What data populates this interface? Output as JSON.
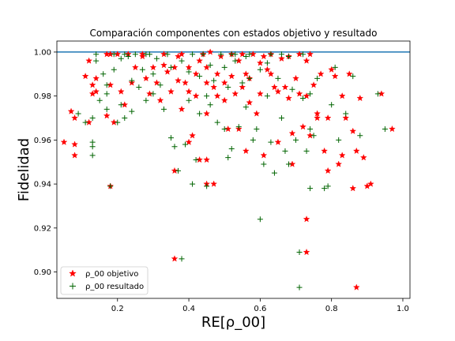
{
  "chart_data": {
    "type": "scatter",
    "title": "Comparación componentes con estados objetivo y resultado",
    "xlabel": "RE[ρ_00]",
    "ylabel": "Fidelidad",
    "xlim": [
      0.03,
      1.02
    ],
    "ylim": [
      0.888,
      1.005
    ],
    "x_ticks": [
      0.2,
      0.4,
      0.6,
      0.8,
      1.0
    ],
    "x_tick_labels": [
      "0.2",
      "0.4",
      "0.6",
      "0.8",
      "1.0"
    ],
    "y_ticks": [
      0.9,
      0.92,
      0.94,
      0.96,
      0.98,
      1.0
    ],
    "y_tick_labels": [
      "0.90",
      "0.92",
      "0.94",
      "0.96",
      "0.98",
      "1.00"
    ],
    "grid": false,
    "legend_position": "lower-left",
    "reference_line": {
      "y": 1.0,
      "color": "#1f77b4"
    },
    "series": [
      {
        "name": "ρ_00 objetivo",
        "marker": "star",
        "color": "#ff0000",
        "points": [
          [
            0.07,
            0.973
          ],
          [
            0.08,
            0.97
          ],
          [
            0.05,
            0.959
          ],
          [
            0.08,
            0.958
          ],
          [
            0.08,
            0.953
          ],
          [
            0.11,
            0.989
          ],
          [
            0.12,
            0.996
          ],
          [
            0.12,
            0.968
          ],
          [
            0.13,
            0.985
          ],
          [
            0.13,
            0.981
          ],
          [
            0.14,
            0.988
          ],
          [
            0.14,
            0.982
          ],
          [
            0.17,
            0.971
          ],
          [
            0.17,
            0.999
          ],
          [
            0.18,
            0.999
          ],
          [
            0.18,
            0.985
          ],
          [
            0.19,
            0.968
          ],
          [
            0.18,
            0.939
          ],
          [
            0.2,
            0.999
          ],
          [
            0.21,
            0.982
          ],
          [
            0.22,
            0.976
          ],
          [
            0.23,
            0.999
          ],
          [
            0.24,
            0.986
          ],
          [
            0.25,
            0.993
          ],
          [
            0.27,
            0.999
          ],
          [
            0.28,
            0.988
          ],
          [
            0.29,
            0.981
          ],
          [
            0.3,
            0.993
          ],
          [
            0.31,
            0.986
          ],
          [
            0.32,
            0.978
          ],
          [
            0.33,
            0.999
          ],
          [
            0.34,
            0.991
          ],
          [
            0.35,
            0.982
          ],
          [
            0.36,
            0.993
          ],
          [
            0.37,
            0.998
          ],
          [
            0.37,
            0.987
          ],
          [
            0.36,
            0.946
          ],
          [
            0.36,
            0.906
          ],
          [
            0.38,
            0.974
          ],
          [
            0.38,
            0.999
          ],
          [
            0.39,
            0.986
          ],
          [
            0.4,
            0.993
          ],
          [
            0.4,
            0.982
          ],
          [
            0.4,
            0.959
          ],
          [
            0.41,
            0.962
          ],
          [
            0.42,
            0.99
          ],
          [
            0.42,
            0.98
          ],
          [
            0.43,
            0.996
          ],
          [
            0.43,
            0.951
          ],
          [
            0.44,
            0.999
          ],
          [
            0.45,
            0.986
          ],
          [
            0.45,
            0.993
          ],
          [
            0.45,
            0.972
          ],
          [
            0.45,
            0.951
          ],
          [
            0.45,
            0.94
          ],
          [
            0.47,
            0.94
          ],
          [
            0.46,
            1.0
          ],
          [
            0.47,
            0.984
          ],
          [
            0.48,
            0.99
          ],
          [
            0.49,
            0.998
          ],
          [
            0.5,
            0.986
          ],
          [
            0.5,
            0.978
          ],
          [
            0.51,
            0.965
          ],
          [
            0.52,
            0.999
          ],
          [
            0.52,
            0.989
          ],
          [
            0.53,
            0.981
          ],
          [
            0.54,
            0.996
          ],
          [
            0.54,
            0.965
          ],
          [
            0.55,
            0.999
          ],
          [
            0.55,
            0.984
          ],
          [
            0.56,
            0.955
          ],
          [
            0.57,
            0.988
          ],
          [
            0.57,
            0.977
          ],
          [
            0.58,
            0.999
          ],
          [
            0.59,
            0.972
          ],
          [
            0.6,
            0.995
          ],
          [
            0.6,
            0.981
          ],
          [
            0.61,
            0.953
          ],
          [
            0.62,
            0.992
          ],
          [
            0.63,
            0.99
          ],
          [
            0.63,
            0.999
          ],
          [
            0.64,
            0.984
          ],
          [
            0.65,
            0.982
          ],
          [
            0.65,
            0.959
          ],
          [
            0.66,
            0.997
          ],
          [
            0.67,
            0.984
          ],
          [
            0.68,
            0.998
          ],
          [
            0.68,
            0.979
          ],
          [
            0.69,
            0.963
          ],
          [
            0.69,
            0.949
          ],
          [
            0.7,
            0.988
          ],
          [
            0.71,
            0.999
          ],
          [
            0.71,
            0.981
          ],
          [
            0.72,
            0.966
          ],
          [
            0.73,
            0.996
          ],
          [
            0.73,
            0.98
          ],
          [
            0.74,
            0.999
          ],
          [
            0.74,
            0.962
          ],
          [
            0.73,
            0.924
          ],
          [
            0.73,
            0.909
          ],
          [
            0.75,
            0.985
          ],
          [
            0.76,
            0.972
          ],
          [
            0.77,
            0.99
          ],
          [
            0.78,
            0.955
          ],
          [
            0.79,
            0.946
          ],
          [
            0.79,
            0.97
          ],
          [
            0.8,
            0.992
          ],
          [
            0.81,
            0.989
          ],
          [
            0.82,
            0.949
          ],
          [
            0.83,
            0.98
          ],
          [
            0.83,
            0.953
          ],
          [
            0.85,
            0.99
          ],
          [
            0.86,
            0.938
          ],
          [
            0.86,
            0.964
          ],
          [
            0.87,
            0.955
          ],
          [
            0.87,
            0.893
          ],
          [
            0.88,
            0.979
          ],
          [
            0.89,
            0.952
          ],
          [
            0.9,
            0.939
          ],
          [
            0.91,
            0.94
          ],
          [
            0.94,
            0.981
          ],
          [
            0.97,
            0.965
          ],
          [
            0.84,
            0.97
          ],
          [
            0.76,
            0.97
          ],
          [
            0.56,
            0.99
          ],
          [
            0.33,
            0.994
          ],
          [
            0.27,
            0.998
          ],
          [
            0.48,
            0.98
          ],
          [
            0.61,
            0.998
          ]
        ]
      },
      {
        "name": "ρ_00 resultado",
        "marker": "plus",
        "color": "#006400",
        "points": [
          [
            0.09,
            0.972
          ],
          [
            0.11,
            0.968
          ],
          [
            0.13,
            0.97
          ],
          [
            0.13,
            0.959
          ],
          [
            0.13,
            0.957
          ],
          [
            0.13,
            0.953
          ],
          [
            0.14,
            0.999
          ],
          [
            0.14,
            0.996
          ],
          [
            0.15,
            0.978
          ],
          [
            0.16,
            0.99
          ],
          [
            0.17,
            0.985
          ],
          [
            0.17,
            0.974
          ],
          [
            0.17,
            0.981
          ],
          [
            0.18,
            0.939
          ],
          [
            0.19,
            0.999
          ],
          [
            0.19,
            0.992
          ],
          [
            0.2,
            0.968
          ],
          [
            0.21,
            0.976
          ],
          [
            0.21,
            0.997
          ],
          [
            0.22,
            0.97
          ],
          [
            0.22,
            0.999
          ],
          [
            0.23,
            0.998
          ],
          [
            0.24,
            0.973
          ],
          [
            0.24,
            0.987
          ],
          [
            0.25,
            0.999
          ],
          [
            0.26,
            0.984
          ],
          [
            0.27,
            0.992
          ],
          [
            0.28,
            0.978
          ],
          [
            0.29,
            0.999
          ],
          [
            0.3,
            0.981
          ],
          [
            0.31,
            0.997
          ],
          [
            0.32,
            0.985
          ],
          [
            0.33,
            0.974
          ],
          [
            0.34,
            0.999
          ],
          [
            0.35,
            0.993
          ],
          [
            0.35,
            0.961
          ],
          [
            0.36,
            0.957
          ],
          [
            0.37,
            0.946
          ],
          [
            0.38,
            0.906
          ],
          [
            0.38,
            0.996
          ],
          [
            0.39,
            0.958
          ],
          [
            0.4,
            0.978
          ],
          [
            0.41,
            0.999
          ],
          [
            0.41,
            0.94
          ],
          [
            0.42,
            0.951
          ],
          [
            0.43,
            0.989
          ],
          [
            0.43,
            0.972
          ],
          [
            0.44,
            0.999
          ],
          [
            0.45,
            0.98
          ],
          [
            0.45,
            0.939
          ],
          [
            0.46,
            0.994
          ],
          [
            0.47,
            0.987
          ],
          [
            0.48,
            0.968
          ],
          [
            0.49,
            0.999
          ],
          [
            0.5,
            0.993
          ],
          [
            0.5,
            0.965
          ],
          [
            0.51,
            0.952
          ],
          [
            0.51,
            0.984
          ],
          [
            0.52,
            0.956
          ],
          [
            0.53,
            0.999
          ],
          [
            0.54,
            0.966
          ],
          [
            0.55,
            0.986
          ],
          [
            0.56,
            0.975
          ],
          [
            0.56,
            0.998
          ],
          [
            0.57,
            0.988
          ],
          [
            0.58,
            0.96
          ],
          [
            0.59,
            0.965
          ],
          [
            0.6,
            0.992
          ],
          [
            0.6,
            0.924
          ],
          [
            0.61,
            0.949
          ],
          [
            0.62,
            0.98
          ],
          [
            0.63,
            0.999
          ],
          [
            0.63,
            0.959
          ],
          [
            0.64,
            0.945
          ],
          [
            0.65,
            0.988
          ],
          [
            0.66,
            0.97
          ],
          [
            0.67,
            0.955
          ],
          [
            0.68,
            0.998
          ],
          [
            0.68,
            0.949
          ],
          [
            0.69,
            0.983
          ],
          [
            0.7,
            0.96
          ],
          [
            0.71,
            0.909
          ],
          [
            0.71,
            0.893
          ],
          [
            0.72,
            0.979
          ],
          [
            0.72,
            0.999
          ],
          [
            0.73,
            0.955
          ],
          [
            0.74,
            0.965
          ],
          [
            0.74,
            0.938
          ],
          [
            0.75,
            0.962
          ],
          [
            0.76,
            0.988
          ],
          [
            0.78,
            0.938
          ],
          [
            0.79,
            0.939
          ],
          [
            0.8,
            0.976
          ],
          [
            0.81,
            0.993
          ],
          [
            0.82,
            0.96
          ],
          [
            0.84,
            0.972
          ],
          [
            0.86,
            0.989
          ],
          [
            0.88,
            0.962
          ],
          [
            0.93,
            0.981
          ],
          [
            0.95,
            0.965
          ],
          [
            0.53,
            0.996
          ],
          [
            0.4,
            0.991
          ],
          [
            0.3,
            0.99
          ],
          [
            0.46,
            0.976
          ],
          [
            0.62,
            0.995
          ],
          [
            0.28,
            0.999
          ],
          [
            0.57,
            0.999
          ],
          [
            0.52,
            0.999
          ],
          [
            0.66,
            0.999
          ],
          [
            0.74,
            0.981
          ]
        ]
      }
    ]
  }
}
